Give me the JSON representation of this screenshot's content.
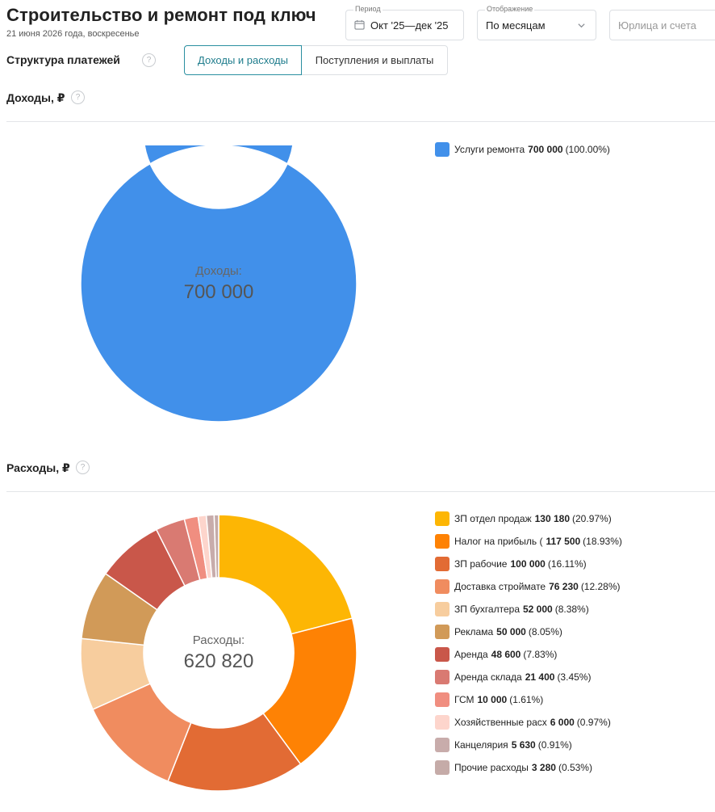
{
  "header": {
    "title": "Строительство и ремонт под ключ",
    "date": "21 июня 2026 года, воскресенье"
  },
  "filters": {
    "period_label": "Период",
    "period_value": "Окт '25—дек '25",
    "display_label": "Отображение",
    "display_value": "По месяцам",
    "entity_placeholder": "Юрлица и счета"
  },
  "structure": {
    "title": "Структура платежей",
    "help": "?",
    "tabs": [
      {
        "label": "Доходы и расходы",
        "active": true
      },
      {
        "label": "Поступления и выплаты",
        "active": false
      }
    ]
  },
  "income": {
    "title": "Доходы, ₽",
    "help": "?",
    "center_label": "Доходы:",
    "center_value": "700 000"
  },
  "expenses": {
    "title": "Расходы, ₽",
    "help": "?",
    "center_label": "Расходы:",
    "center_value": "620 820"
  },
  "chart_data": [
    {
      "type": "pie",
      "title": "Доходы, ₽",
      "categories": [
        "Услуги ремонта"
      ],
      "values": [
        700000
      ],
      "value_labels": [
        "700 000"
      ],
      "percent_labels": [
        "(100.00%)"
      ],
      "colors": [
        "#4190ea"
      ],
      "legend": "right"
    },
    {
      "type": "pie",
      "title": "Расходы, ₽",
      "categories": [
        "ЗП отдел продаж",
        "Налог на прибыль (",
        "ЗП рабочие",
        "Доставка строймате",
        "ЗП бухгалтера",
        "Реклама",
        "Аренда",
        "Аренда склада",
        "ГСМ",
        "Хозяйственные расх",
        "Канцелярия",
        "Прочие расходы"
      ],
      "values": [
        130180,
        117500,
        100000,
        76230,
        52000,
        50000,
        48600,
        21400,
        10000,
        6000,
        5630,
        3280
      ],
      "value_labels": [
        "130 180",
        "117 500",
        "100 000",
        "76 230",
        "52 000",
        "50 000",
        "48 600",
        "21 400",
        "10 000",
        "6 000",
        "5 630",
        "3 280"
      ],
      "percent_labels": [
        "(20.97%)",
        "(18.93%)",
        "(16.11%)",
        "(12.28%)",
        "(8.38%)",
        "(8.05%)",
        "(7.83%)",
        "(3.45%)",
        "(1.61%)",
        "(0.97%)",
        "(0.91%)",
        "(0.53%)"
      ],
      "colors": [
        "#fdb604",
        "#fe8204",
        "#e26b34",
        "#f08c5f",
        "#f7cd9e",
        "#d19a58",
        "#c9574a",
        "#d97a72",
        "#f08e80",
        "#fdd5cc",
        "#c8acab",
        "#c5aba8"
      ],
      "legend": "right"
    }
  ]
}
